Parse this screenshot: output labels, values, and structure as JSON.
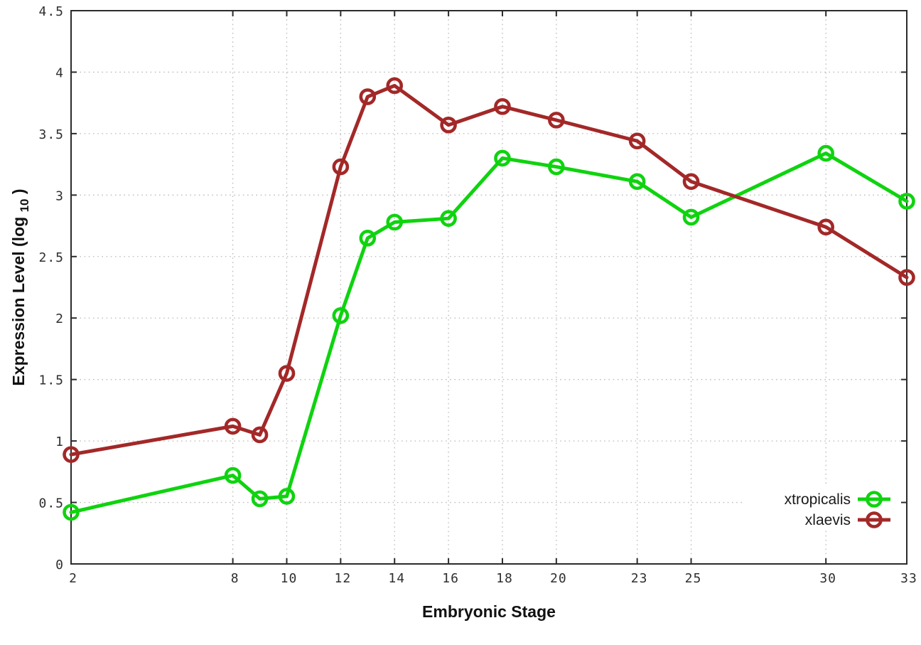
{
  "chart_data": {
    "type": "line",
    "title": "",
    "xlabel": "Embryonic Stage",
    "ylabel": "Expression Level (log10)",
    "ylabel_parts": {
      "prefix": "Expression Level (log",
      "sub": "10",
      "suffix": ")"
    },
    "x": [
      2,
      8,
      9,
      10,
      12,
      13,
      14,
      16,
      18,
      20,
      23,
      25,
      30,
      33
    ],
    "series": [
      {
        "name": "xtropicalis",
        "color": "#0fd30f",
        "values": [
          0.42,
          0.72,
          0.53,
          0.55,
          2.02,
          2.65,
          2.78,
          2.81,
          3.3,
          3.23,
          3.11,
          2.82,
          3.34,
          2.95
        ]
      },
      {
        "name": "xlaevis",
        "color": "#a32828",
        "values": [
          0.89,
          1.12,
          1.05,
          1.55,
          3.23,
          3.8,
          3.89,
          3.57,
          3.72,
          3.61,
          3.44,
          3.11,
          2.74,
          2.33
        ]
      }
    ],
    "x_ticks": [
      2,
      8,
      10,
      12,
      14,
      16,
      18,
      20,
      23,
      25,
      30,
      33
    ],
    "y_ticks": [
      0,
      0.5,
      1,
      1.5,
      2,
      2.5,
      3,
      3.5,
      4,
      4.5
    ],
    "xlim": [
      2,
      33
    ],
    "ylim": [
      0,
      4.5
    ],
    "grid": true,
    "legend_position": "inside-bottom-right",
    "marker": "open-circle",
    "frame_color": "#2b2b2b",
    "grid_color": "#bbbbbb",
    "background_color": "#ffffff"
  }
}
